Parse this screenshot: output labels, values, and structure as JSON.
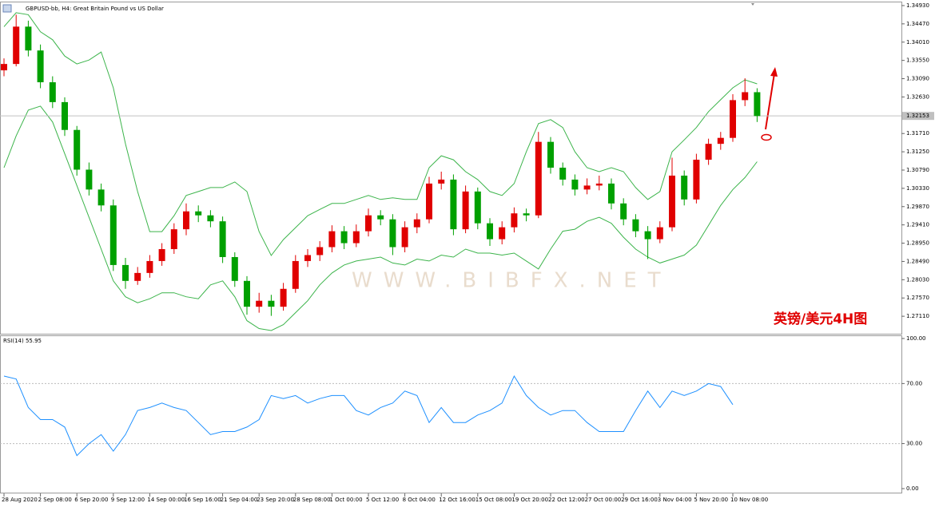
{
  "chart_data": [
    {
      "type": "candlestick",
      "title": "GBPUSD-bb, H4:  Great Britain Pound vs US Dollar",
      "annotation": "英镑/美元4H图",
      "watermark": "WWW.BIBFX.NET",
      "up_color": "#e00000",
      "down_color": "#00a000",
      "categories": [
        "28 Aug 2020",
        null,
        null,
        "2 Sep 08:00",
        null,
        null,
        "6 Sep 20:00",
        null,
        null,
        "9 Sep 12:00",
        null,
        null,
        "14 Sep 00:00",
        null,
        null,
        "16 Sep 16:00",
        null,
        null,
        "21 Sep 04:00",
        null,
        null,
        "23 Sep 20:00",
        null,
        null,
        "28 Sep 08:00",
        null,
        null,
        "1 Oct 00:00",
        null,
        null,
        "5 Oct 12:00",
        null,
        null,
        "8 Oct 04:00",
        null,
        null,
        "12 Oct 16:00",
        null,
        null,
        "15 Oct 08:00",
        null,
        null,
        "19 Oct 20:00",
        null,
        null,
        "22 Oct 12:00",
        null,
        null,
        "27 Oct 00:00",
        null,
        null,
        "29 Oct 16:00",
        null,
        null,
        "3 Nov 04:00",
        null,
        null,
        "5 Nov 20:00",
        null,
        null,
        "10 Nov 08:00",
        null,
        null
      ],
      "open": [
        1.333,
        1.3346,
        1.344,
        1.338,
        1.33,
        1.325,
        1.318,
        1.308,
        1.303,
        1.299,
        1.284,
        1.28,
        1.282,
        1.285,
        1.288,
        1.293,
        1.2975,
        1.2965,
        1.295,
        1.286,
        1.28,
        1.2735,
        1.275,
        1.2735,
        1.278,
        1.285,
        1.2865,
        1.2885,
        1.2925,
        1.2895,
        1.2925,
        1.2965,
        1.2955,
        1.2885,
        1.2935,
        1.2955,
        1.3045,
        1.3055,
        1.293,
        1.3025,
        1.2945,
        1.2905,
        1.2935,
        1.297,
        1.2965,
        1.315,
        1.3085,
        1.3055,
        1.303,
        1.304,
        1.3045,
        1.2995,
        1.2955,
        1.2925,
        1.2905,
        1.2935,
        1.3065,
        1.3005,
        1.3105,
        1.3145,
        1.316,
        1.3255,
        1.3275
      ],
      "high": [
        1.336,
        1.347,
        1.3455,
        1.3395,
        1.3315,
        1.3262,
        1.319,
        1.3098,
        1.3045,
        1.3005,
        1.2858,
        1.2835,
        1.2865,
        1.2895,
        1.2945,
        1.2995,
        1.299,
        1.2978,
        1.2962,
        1.2872,
        1.2812,
        1.277,
        1.2765,
        1.2795,
        1.2865,
        1.288,
        1.29,
        1.294,
        1.2938,
        1.2942,
        1.2982,
        1.2978,
        1.2968,
        1.295,
        1.297,
        1.3062,
        1.3075,
        1.3068,
        1.304,
        1.3035,
        1.2958,
        1.295,
        1.2985,
        1.2982,
        1.3175,
        1.3162,
        1.3098,
        1.3068,
        1.3058,
        1.3065,
        1.3058,
        1.3008,
        1.2968,
        1.2938,
        1.295,
        1.311,
        1.3078,
        1.312,
        1.3158,
        1.3175,
        1.327,
        1.331,
        1.3285
      ],
      "low": [
        1.3315,
        1.334,
        1.3365,
        1.3285,
        1.3235,
        1.3165,
        1.3065,
        1.3015,
        1.2975,
        1.2825,
        1.278,
        1.279,
        1.2808,
        1.2838,
        1.2868,
        1.2915,
        1.2948,
        1.2935,
        1.2845,
        1.2785,
        1.2715,
        1.272,
        1.2712,
        1.2725,
        1.277,
        1.2835,
        1.285,
        1.2872,
        1.288,
        1.2885,
        1.2912,
        1.294,
        1.2865,
        1.2872,
        1.292,
        1.2945,
        1.303,
        1.2915,
        1.292,
        1.293,
        1.2888,
        1.2892,
        1.2922,
        1.295,
        1.2958,
        1.307,
        1.304,
        1.3015,
        1.3018,
        1.3028,
        1.298,
        1.294,
        1.291,
        1.2855,
        1.2895,
        1.2925,
        1.299,
        1.2995,
        1.3092,
        1.313,
        1.315,
        1.324,
        1.32
      ],
      "close": [
        1.3346,
        1.344,
        1.338,
        1.33,
        1.325,
        1.318,
        1.308,
        1.303,
        1.299,
        1.284,
        1.28,
        1.282,
        1.285,
        1.288,
        1.293,
        1.2975,
        1.2965,
        1.295,
        1.286,
        1.28,
        1.2735,
        1.275,
        1.2735,
        1.278,
        1.285,
        1.2865,
        1.2885,
        1.2925,
        1.2895,
        1.2925,
        1.2965,
        1.2955,
        1.2885,
        1.2935,
        1.2955,
        1.3045,
        1.3055,
        1.293,
        1.3025,
        1.2945,
        1.2905,
        1.2935,
        1.297,
        1.2965,
        1.315,
        1.3085,
        1.3055,
        1.303,
        1.304,
        1.3045,
        1.2995,
        1.2955,
        1.2925,
        1.2905,
        1.2935,
        1.3065,
        1.3005,
        1.3105,
        1.3145,
        1.316,
        1.3255,
        1.3275,
        1.3215
      ],
      "series": [
        {
          "color": "#3cb44b",
          "values": [
            1.344,
            1.3475,
            1.347,
            1.3427,
            1.3407,
            1.3366,
            1.3346,
            1.3356,
            1.3376,
            1.3286,
            1.3145,
            1.3025,
            1.2924,
            1.2924,
            1.2964,
            1.3015,
            1.3025,
            1.3035,
            1.3035,
            1.3049,
            1.3025,
            1.2924,
            1.2864,
            1.2904,
            1.2934,
            1.2964,
            1.298,
            1.2995,
            1.2995,
            1.3005,
            1.3015,
            1.3005,
            1.3009,
            1.3005,
            1.3005,
            1.3085,
            1.3115,
            1.3105,
            1.3075,
            1.3055,
            1.3025,
            1.3015,
            1.3045,
            1.3125,
            1.3196,
            1.3206,
            1.3186,
            1.3125,
            1.3085,
            1.3075,
            1.3085,
            1.3075,
            1.3035,
            1.3005,
            1.3025,
            1.3125,
            1.3155,
            1.3186,
            1.3226,
            1.3256,
            1.3286,
            1.3306,
            1.3296
          ]
        },
        {
          "color": "#3cb44b",
          "values": [
            1.3085,
            1.3165,
            1.323,
            1.324,
            1.32,
            1.312,
            1.304,
            1.296,
            1.288,
            1.28,
            1.276,
            1.2745,
            1.2755,
            1.277,
            1.277,
            1.276,
            1.2755,
            1.279,
            1.28,
            1.276,
            1.27,
            1.268,
            1.2675,
            1.269,
            1.272,
            1.275,
            1.279,
            1.282,
            1.284,
            1.285,
            1.2855,
            1.286,
            1.2845,
            1.284,
            1.2855,
            1.285,
            1.2865,
            1.286,
            1.288,
            1.287,
            1.287,
            1.2865,
            1.287,
            1.285,
            1.283,
            1.288,
            1.2925,
            1.293,
            1.295,
            1.296,
            1.2945,
            1.291,
            1.288,
            1.286,
            1.2845,
            1.2855,
            1.2865,
            1.289,
            1.294,
            1.299,
            1.303,
            1.306,
            1.31
          ]
        }
      ],
      "price_line": {
        "value": 1.32153,
        "label": "1.32153"
      },
      "ylim": [
        1.2667,
        1.3501
      ],
      "yticks": [
        {
          "value": 1.3493,
          "label": "1.34930"
        },
        {
          "value": 1.3447,
          "label": "1.34470"
        },
        {
          "value": 1.3401,
          "label": "1.34010"
        },
        {
          "value": 1.3355,
          "label": "1.33550"
        },
        {
          "value": 1.3309,
          "label": "1.33090"
        },
        {
          "value": 1.3263,
          "label": "1.32630"
        },
        {
          "value": 1.3171,
          "label": "1.31710"
        },
        {
          "value": 1.3125,
          "label": "1.31250"
        },
        {
          "value": 1.3079,
          "label": "1.30790"
        },
        {
          "value": 1.3033,
          "label": "1.30330"
        },
        {
          "value": 1.2987,
          "label": "1.29870"
        },
        {
          "value": 1.2941,
          "label": "1.29410"
        },
        {
          "value": 1.2895,
          "label": "1.28950"
        },
        {
          "value": 1.2849,
          "label": "1.28490"
        },
        {
          "value": 1.2803,
          "label": "1.28030"
        },
        {
          "value": 1.2757,
          "label": "1.27570"
        },
        {
          "value": 1.2711,
          "label": "1.27110"
        }
      ]
    },
    {
      "type": "line",
      "title": "RSI(14) 55.95",
      "series": [
        {
          "color": "#1e90ff",
          "values": [
            75,
            73,
            54,
            46,
            46,
            41,
            22,
            30,
            36,
            25,
            36,
            52,
            54,
            57,
            54,
            52,
            44,
            36,
            38,
            38,
            41,
            46,
            62,
            60,
            62,
            57,
            60,
            62,
            62,
            52,
            49,
            54,
            57,
            65,
            62,
            44,
            54,
            44,
            44,
            49,
            52,
            57,
            75,
            62,
            54,
            49,
            52,
            52,
            44,
            38,
            38,
            38,
            52,
            65,
            54,
            65,
            62,
            65,
            70,
            68,
            55.95
          ]
        }
      ],
      "ylim": [
        -3.2,
        102.1
      ],
      "yticks": [
        {
          "value": 100,
          "label": "100.00"
        },
        {
          "value": 70,
          "label": "70.00"
        },
        {
          "value": 30,
          "label": "30.00"
        },
        {
          "value": 0,
          "label": "0.00"
        }
      ]
    }
  ]
}
